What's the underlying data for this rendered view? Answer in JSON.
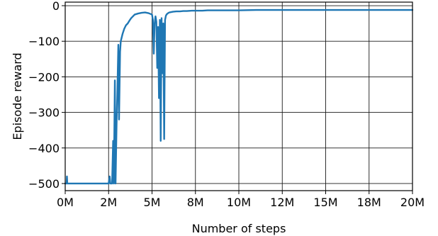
{
  "chart_data": {
    "type": "line",
    "title": "",
    "xlabel": "Number of steps",
    "ylabel": "Episode reward",
    "x_unit": "steps",
    "xlim": [
      0,
      20000000
    ],
    "ylim": [
      -520,
      10
    ],
    "grid": true,
    "legend": "none",
    "x_ticks": [
      {
        "value": 0,
        "label": "0M"
      },
      {
        "value": 2500000,
        "label": "2M"
      },
      {
        "value": 5000000,
        "label": "5M"
      },
      {
        "value": 7500000,
        "label": "8M"
      },
      {
        "value": 10000000,
        "label": "10M"
      },
      {
        "value": 12500000,
        "label": "12M"
      },
      {
        "value": 15000000,
        "label": "15M"
      },
      {
        "value": 17500000,
        "label": "18M"
      },
      {
        "value": 20000000,
        "label": "20M"
      }
    ],
    "y_ticks": [
      {
        "value": 0,
        "label": "0"
      },
      {
        "value": -100,
        "label": "−100"
      },
      {
        "value": -200,
        "label": "−200"
      },
      {
        "value": -300,
        "label": "−300"
      },
      {
        "value": -400,
        "label": "−400"
      },
      {
        "value": -500,
        "label": "−500"
      }
    ],
    "series": [
      {
        "color": "#1f77b4",
        "x": [
          0,
          80000,
          100000,
          120000,
          300000,
          1000000,
          2000000,
          2500000,
          2560000,
          2600000,
          2660000,
          2700000,
          2760000,
          2800000,
          2860000,
          2900000,
          2960000,
          3000000,
          3060000,
          3100000,
          3160000,
          3200000,
          3300000,
          3400000,
          3500000,
          3600000,
          3700000,
          3800000,
          3900000,
          4000000,
          4200000,
          4400000,
          4600000,
          4800000,
          5000000,
          5050000,
          5100000,
          5150000,
          5200000,
          5250000,
          5300000,
          5350000,
          5400000,
          5450000,
          5500000,
          5550000,
          5600000,
          5650000,
          5700000,
          5750000,
          5800000,
          5850000,
          5900000,
          5950000,
          6000000,
          6100000,
          6200000,
          6400000,
          6600000,
          6800000,
          7000000,
          7300000,
          7600000,
          7900000,
          8200000,
          8600000,
          9000000,
          9500000,
          10000000,
          11000000,
          12000000,
          13000000,
          14000000,
          15000000,
          16000000,
          17000000,
          18000000,
          19000000,
          20000000
        ],
        "y": [
          -500,
          -500,
          -480,
          -500,
          -500,
          -500,
          -500,
          -500,
          -480,
          -500,
          -500,
          -500,
          -380,
          -500,
          -210,
          -500,
          -330,
          -250,
          -110,
          -320,
          -130,
          -100,
          -80,
          -65,
          -55,
          -50,
          -42,
          -35,
          -30,
          -25,
          -22,
          -20,
          -19,
          -21,
          -25,
          -40,
          -135,
          -50,
          -30,
          -45,
          -175,
          -60,
          -260,
          -40,
          -380,
          -35,
          -190,
          -50,
          -375,
          -40,
          -28,
          -24,
          -22,
          -20,
          -19,
          -18,
          -17,
          -16,
          -16,
          -15,
          -15,
          -14,
          -14,
          -14,
          -13,
          -13,
          -13,
          -13,
          -13,
          -12,
          -12,
          -12,
          -12,
          -12,
          -12,
          -12,
          -12,
          -12,
          -12
        ]
      }
    ]
  }
}
